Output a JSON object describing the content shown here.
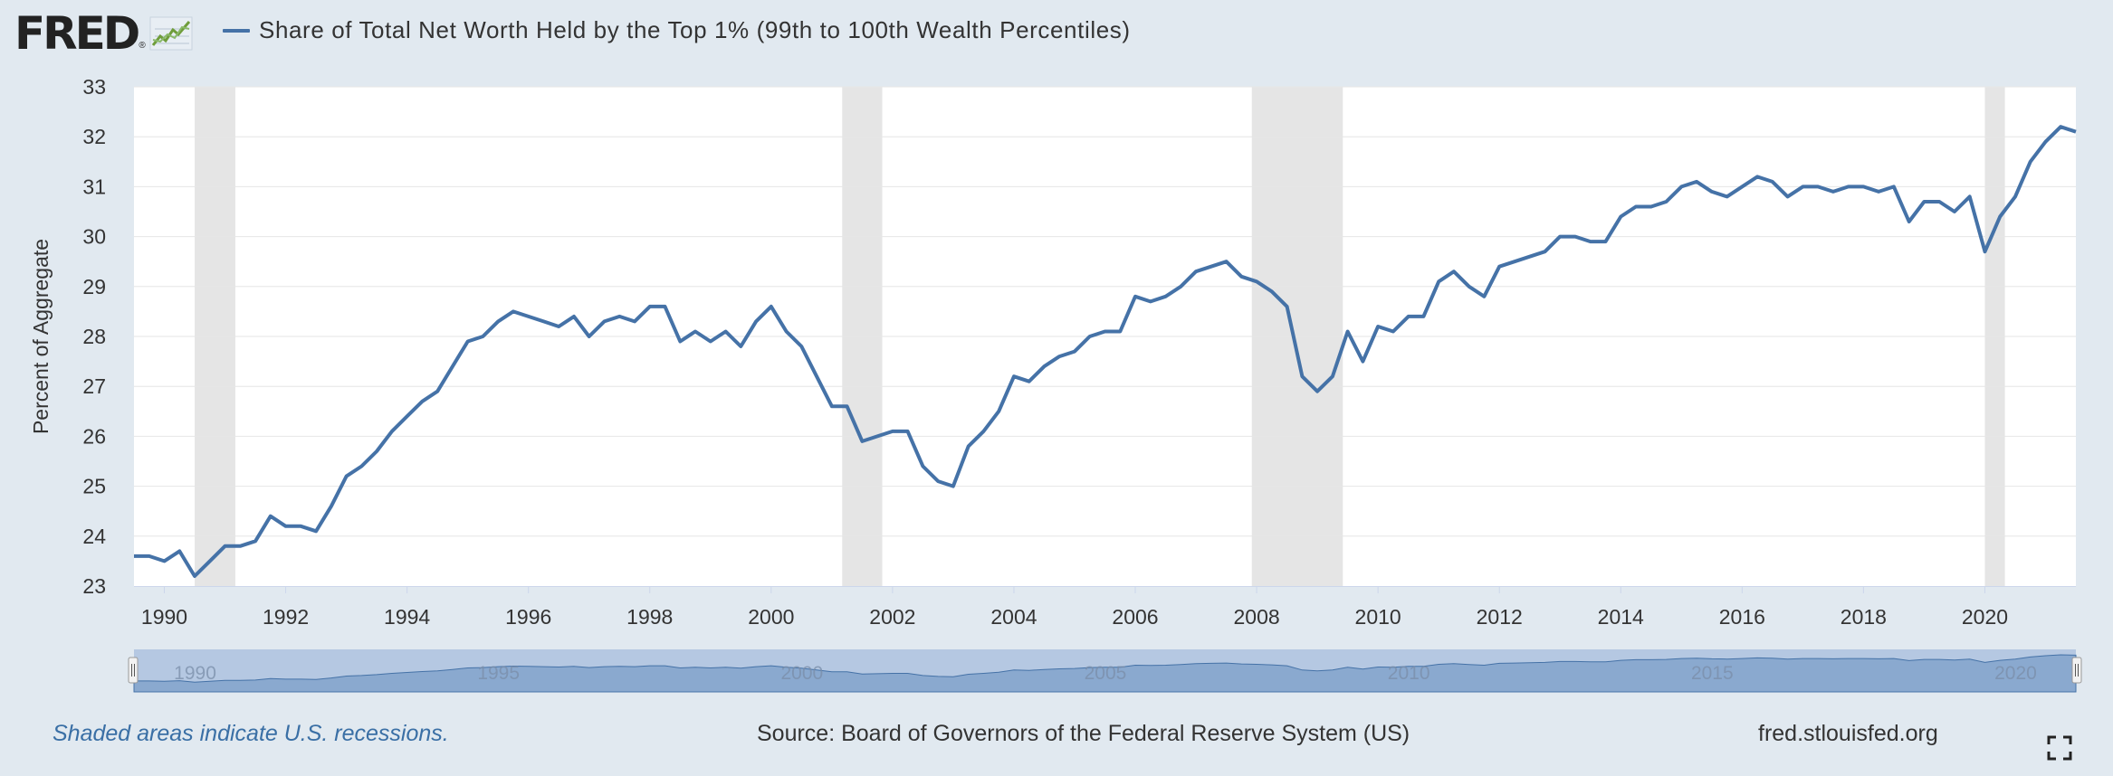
{
  "header": {
    "logo_text": "FRED",
    "logo_reg": "®",
    "series_title": "Share of Total Net Worth Held by the Top 1% (99th to 100th Wealth Percentiles)",
    "series_color": "#4572a7"
  },
  "footer": {
    "recession_note": "Shaded areas indicate U.S. recessions.",
    "source": "Source: Board of Governors of the Federal Reserve System (US)",
    "site": "fred.stlouisfed.org"
  },
  "icons": {
    "fullscreen": "fullscreen-icon",
    "logo_graph": "fred-graph-icon"
  },
  "colors": {
    "line": "#4572a7",
    "recession": "#e5e5e5",
    "navigator_fill": "#8aa9cf",
    "navigator_mask": "#b5c8e2",
    "background": "#e1e9f0"
  },
  "chart_data": {
    "type": "line",
    "title": "Share of Total Net Worth Held by the Top 1% (99th to 100th Wealth Percentiles)",
    "ylabel": "Percent of Aggregate",
    "xlabel": "",
    "ylim": [
      23,
      33
    ],
    "yticks": [
      "23",
      "24",
      "25",
      "26",
      "27",
      "28",
      "29",
      "30",
      "31",
      "32",
      "33"
    ],
    "xlim": [
      1989.5,
      2021.5
    ],
    "xticks": [
      "1990",
      "1992",
      "1994",
      "1996",
      "1998",
      "2000",
      "2002",
      "2004",
      "2006",
      "2008",
      "2010",
      "2012",
      "2014",
      "2016",
      "2018",
      "2020"
    ],
    "grid": true,
    "recessions": [
      [
        1990.5,
        1991.17
      ],
      [
        2001.17,
        2001.83
      ],
      [
        2007.92,
        2009.42
      ],
      [
        2020.0,
        2020.33
      ]
    ],
    "navigator_labels": [
      "1990",
      "1995",
      "2000",
      "2005",
      "2010",
      "2015",
      "2020"
    ],
    "series": [
      {
        "name": "Share of Total Net Worth Held by the Top 1% (99th to 100th Wealth Percentiles)",
        "x_start": 1989.5,
        "x_step": 0.25,
        "values": [
          23.6,
          23.6,
          23.5,
          23.7,
          23.2,
          23.5,
          23.8,
          23.8,
          23.9,
          24.4,
          24.2,
          24.2,
          24.1,
          24.6,
          25.2,
          25.4,
          25.7,
          26.1,
          26.4,
          26.7,
          26.9,
          27.4,
          27.9,
          28.0,
          28.3,
          28.5,
          28.4,
          28.3,
          28.2,
          28.4,
          28.0,
          28.3,
          28.4,
          28.3,
          28.6,
          28.6,
          27.9,
          28.1,
          27.9,
          28.1,
          27.8,
          28.3,
          28.6,
          28.1,
          27.8,
          27.2,
          26.6,
          26.6,
          25.9,
          26.0,
          26.1,
          26.1,
          25.4,
          25.1,
          25.0,
          25.8,
          26.1,
          26.5,
          27.2,
          27.1,
          27.4,
          27.6,
          27.7,
          28.0,
          28.1,
          28.1,
          28.8,
          28.7,
          28.8,
          29.0,
          29.3,
          29.4,
          29.5,
          29.2,
          29.1,
          28.9,
          28.6,
          27.2,
          26.9,
          27.2,
          28.1,
          27.5,
          28.2,
          28.1,
          28.4,
          28.4,
          29.1,
          29.3,
          29.0,
          28.8,
          29.4,
          29.5,
          29.6,
          29.7,
          30.0,
          30.0,
          29.9,
          29.9,
          30.4,
          30.6,
          30.6,
          30.7,
          31.0,
          31.1,
          30.9,
          30.8,
          31.0,
          31.2,
          31.1,
          30.8,
          31.0,
          31.0,
          30.9,
          31.0,
          31.0,
          30.9,
          31.0,
          30.3,
          30.7,
          30.7,
          30.5,
          30.8,
          29.7,
          30.4,
          30.8,
          31.5,
          31.9,
          32.2,
          32.1
        ]
      }
    ]
  }
}
